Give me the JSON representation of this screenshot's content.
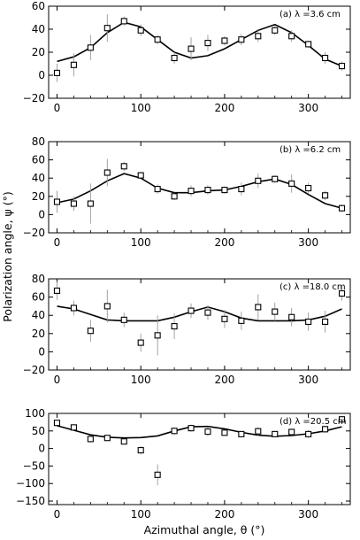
{
  "figure": {
    "xlabel": "Azimuthal angle, θ (°)",
    "ylabel": "Polarization angle, ψ (°)"
  },
  "chart_data": [
    {
      "type": "scatter",
      "label": "(a) λ =3.6 cm",
      "xlim": [
        -10,
        350
      ],
      "ylim": [
        -20,
        60
      ],
      "xticks": [
        0,
        100,
        200,
        300
      ],
      "yticks": [
        -20,
        0,
        20,
        40,
        60
      ],
      "points": {
        "x": [
          0,
          20,
          40,
          60,
          80,
          100,
          120,
          140,
          160,
          180,
          200,
          220,
          240,
          260,
          280,
          300,
          320,
          340
        ],
        "y": [
          2,
          9,
          24,
          41,
          47,
          39,
          31,
          15,
          23,
          28,
          30,
          31,
          34,
          39,
          34,
          27,
          15,
          8
        ],
        "err": [
          8,
          10,
          11,
          12,
          4,
          5,
          4,
          5,
          10,
          7,
          4,
          5,
          5,
          4,
          5,
          3,
          5,
          4
        ]
      },
      "model": {
        "x": [
          0,
          20,
          40,
          60,
          80,
          100,
          120,
          140,
          160,
          180,
          200,
          220,
          240,
          260,
          280,
          300,
          320,
          340
        ],
        "y": [
          12,
          16,
          24,
          37,
          46,
          42,
          31,
          20,
          15,
          17,
          23,
          31,
          39,
          44,
          37,
          26,
          14,
          8
        ]
      }
    },
    {
      "type": "scatter",
      "label": "(b) λ =6.2 cm",
      "xlim": [
        -10,
        350
      ],
      "ylim": [
        -20,
        80
      ],
      "xticks": [
        0,
        100,
        200,
        300
      ],
      "yticks": [
        -20,
        0,
        20,
        40,
        60,
        80
      ],
      "points": {
        "x": [
          0,
          20,
          40,
          60,
          80,
          100,
          120,
          140,
          160,
          180,
          200,
          220,
          240,
          260,
          280,
          300,
          320,
          340
        ],
        "y": [
          14,
          12,
          12,
          46,
          53,
          43,
          28,
          20,
          26,
          27,
          27,
          28,
          37,
          39,
          34,
          29,
          21,
          7
        ],
        "err": [
          12,
          8,
          22,
          15,
          5,
          4,
          5,
          4,
          6,
          5,
          4,
          7,
          8,
          4,
          10,
          6,
          5,
          4
        ]
      },
      "model": {
        "x": [
          0,
          20,
          40,
          60,
          80,
          100,
          120,
          140,
          160,
          180,
          200,
          220,
          240,
          260,
          280,
          300,
          320,
          340
        ],
        "y": [
          13,
          17,
          26,
          37,
          45,
          40,
          29,
          24,
          24,
          26,
          27,
          31,
          36,
          39,
          33,
          22,
          12,
          7
        ]
      }
    },
    {
      "type": "scatter",
      "label": "(c) λ =18.0 cm",
      "xlim": [
        -10,
        350
      ],
      "ylim": [
        -20,
        80
      ],
      "xticks": [
        0,
        100,
        200,
        300
      ],
      "yticks": [
        -20,
        0,
        20,
        40,
        60,
        80
      ],
      "points": {
        "x": [
          0,
          20,
          40,
          60,
          80,
          100,
          120,
          140,
          160,
          180,
          200,
          220,
          240,
          260,
          280,
          300,
          320,
          340
        ],
        "y": [
          67,
          48,
          23,
          50,
          35,
          10,
          18,
          28,
          45,
          43,
          36,
          34,
          49,
          44,
          38,
          33,
          33,
          64
        ],
        "err": [
          10,
          8,
          12,
          18,
          8,
          10,
          22,
          14,
          8,
          8,
          10,
          10,
          14,
          10,
          10,
          10,
          12,
          8
        ]
      },
      "model": {
        "x": [
          0,
          20,
          40,
          60,
          80,
          100,
          120,
          140,
          160,
          180,
          200,
          220,
          240,
          260,
          280,
          300,
          320,
          340
        ],
        "y": [
          50,
          47,
          41,
          35,
          34,
          34,
          34,
          38,
          44,
          49,
          44,
          37,
          34,
          34,
          34,
          35,
          39,
          47
        ]
      }
    },
    {
      "type": "scatter",
      "label": "(d) λ =20.5 cm",
      "xlim": [
        -10,
        350
      ],
      "ylim": [
        -160,
        100
      ],
      "xticks": [
        0,
        100,
        200,
        300
      ],
      "yticks": [
        -150,
        -100,
        -50,
        0,
        50,
        100
      ],
      "points": {
        "x": [
          0,
          20,
          40,
          60,
          80,
          100,
          120,
          140,
          160,
          180,
          200,
          220,
          240,
          260,
          280,
          300,
          320,
          340
        ],
        "y": [
          73,
          60,
          27,
          30,
          20,
          -5,
          -75,
          50,
          58,
          48,
          45,
          41,
          49,
          41,
          47,
          41,
          55,
          83
        ],
        "err": [
          8,
          6,
          10,
          8,
          6,
          12,
          30,
          10,
          10,
          12,
          8,
          8,
          12,
          8,
          10,
          12,
          10,
          10
        ]
      },
      "model": {
        "x": [
          0,
          20,
          40,
          60,
          80,
          100,
          120,
          140,
          160,
          180,
          200,
          220,
          240,
          260,
          280,
          300,
          320,
          340
        ],
        "y": [
          65,
          52,
          39,
          32,
          30,
          31,
          36,
          50,
          62,
          63,
          56,
          46,
          38,
          35,
          37,
          42,
          50,
          62
        ]
      }
    }
  ]
}
